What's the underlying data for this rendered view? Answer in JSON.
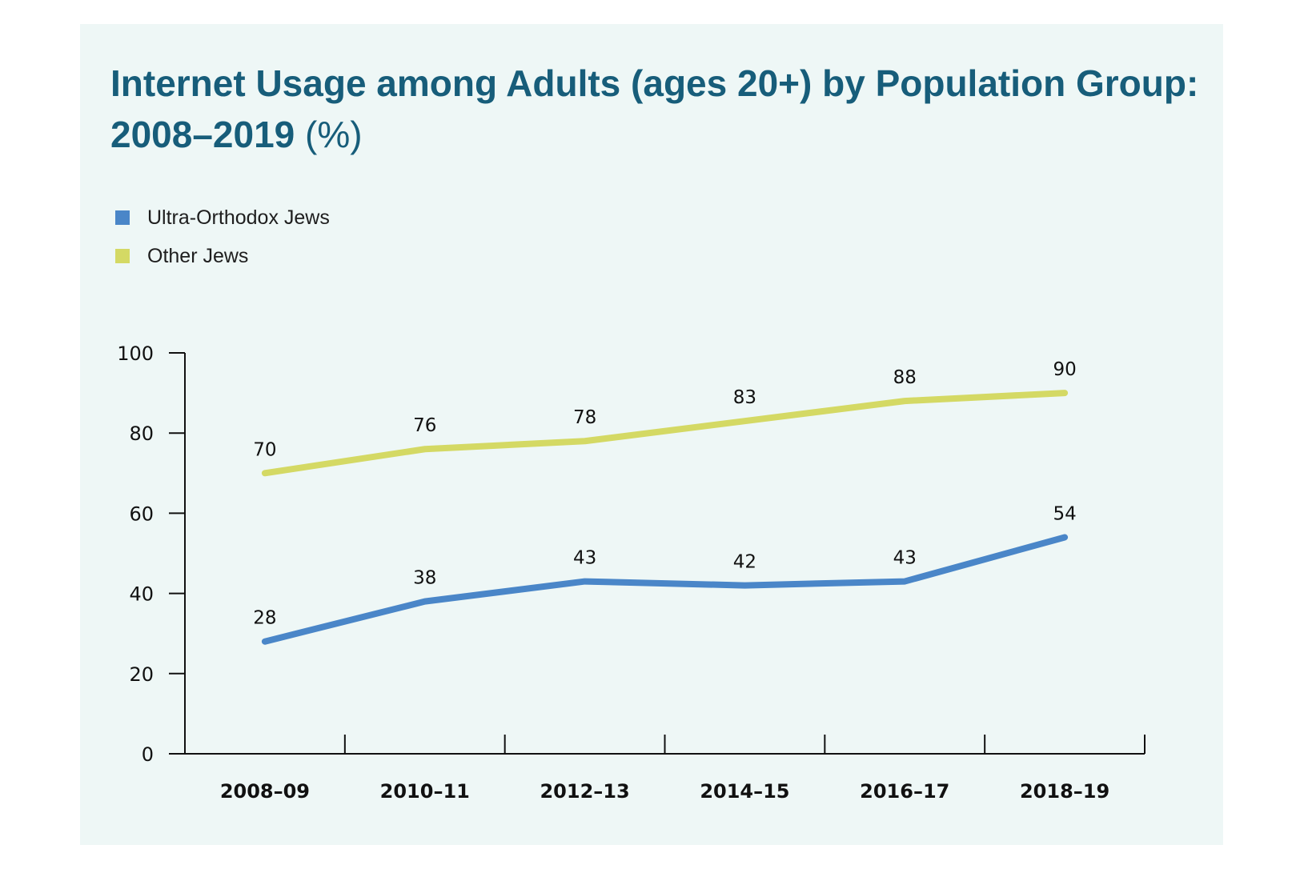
{
  "chart_data": {
    "type": "line",
    "title": "Internet Usage among Adults (ages 20+) by Population Group: 2008–2019",
    "title_unit": "(%)",
    "categories": [
      "2008–09",
      "2010–11",
      "2012–13",
      "2014–15",
      "2016–17",
      "2018–19"
    ],
    "series": [
      {
        "name": "Ultra-Orthodox Jews",
        "color": "#4a86c8",
        "values": [
          28,
          38,
          43,
          42,
          43,
          54
        ]
      },
      {
        "name": "Other Jews",
        "color": "#d4d964",
        "values": [
          70,
          76,
          78,
          83,
          88,
          90
        ]
      }
    ],
    "yticks": [
      0,
      20,
      40,
      60,
      80,
      100
    ],
    "ylim": [
      0,
      100
    ],
    "xlabel": "",
    "ylabel": "",
    "grid": false,
    "legend": "top-left"
  }
}
